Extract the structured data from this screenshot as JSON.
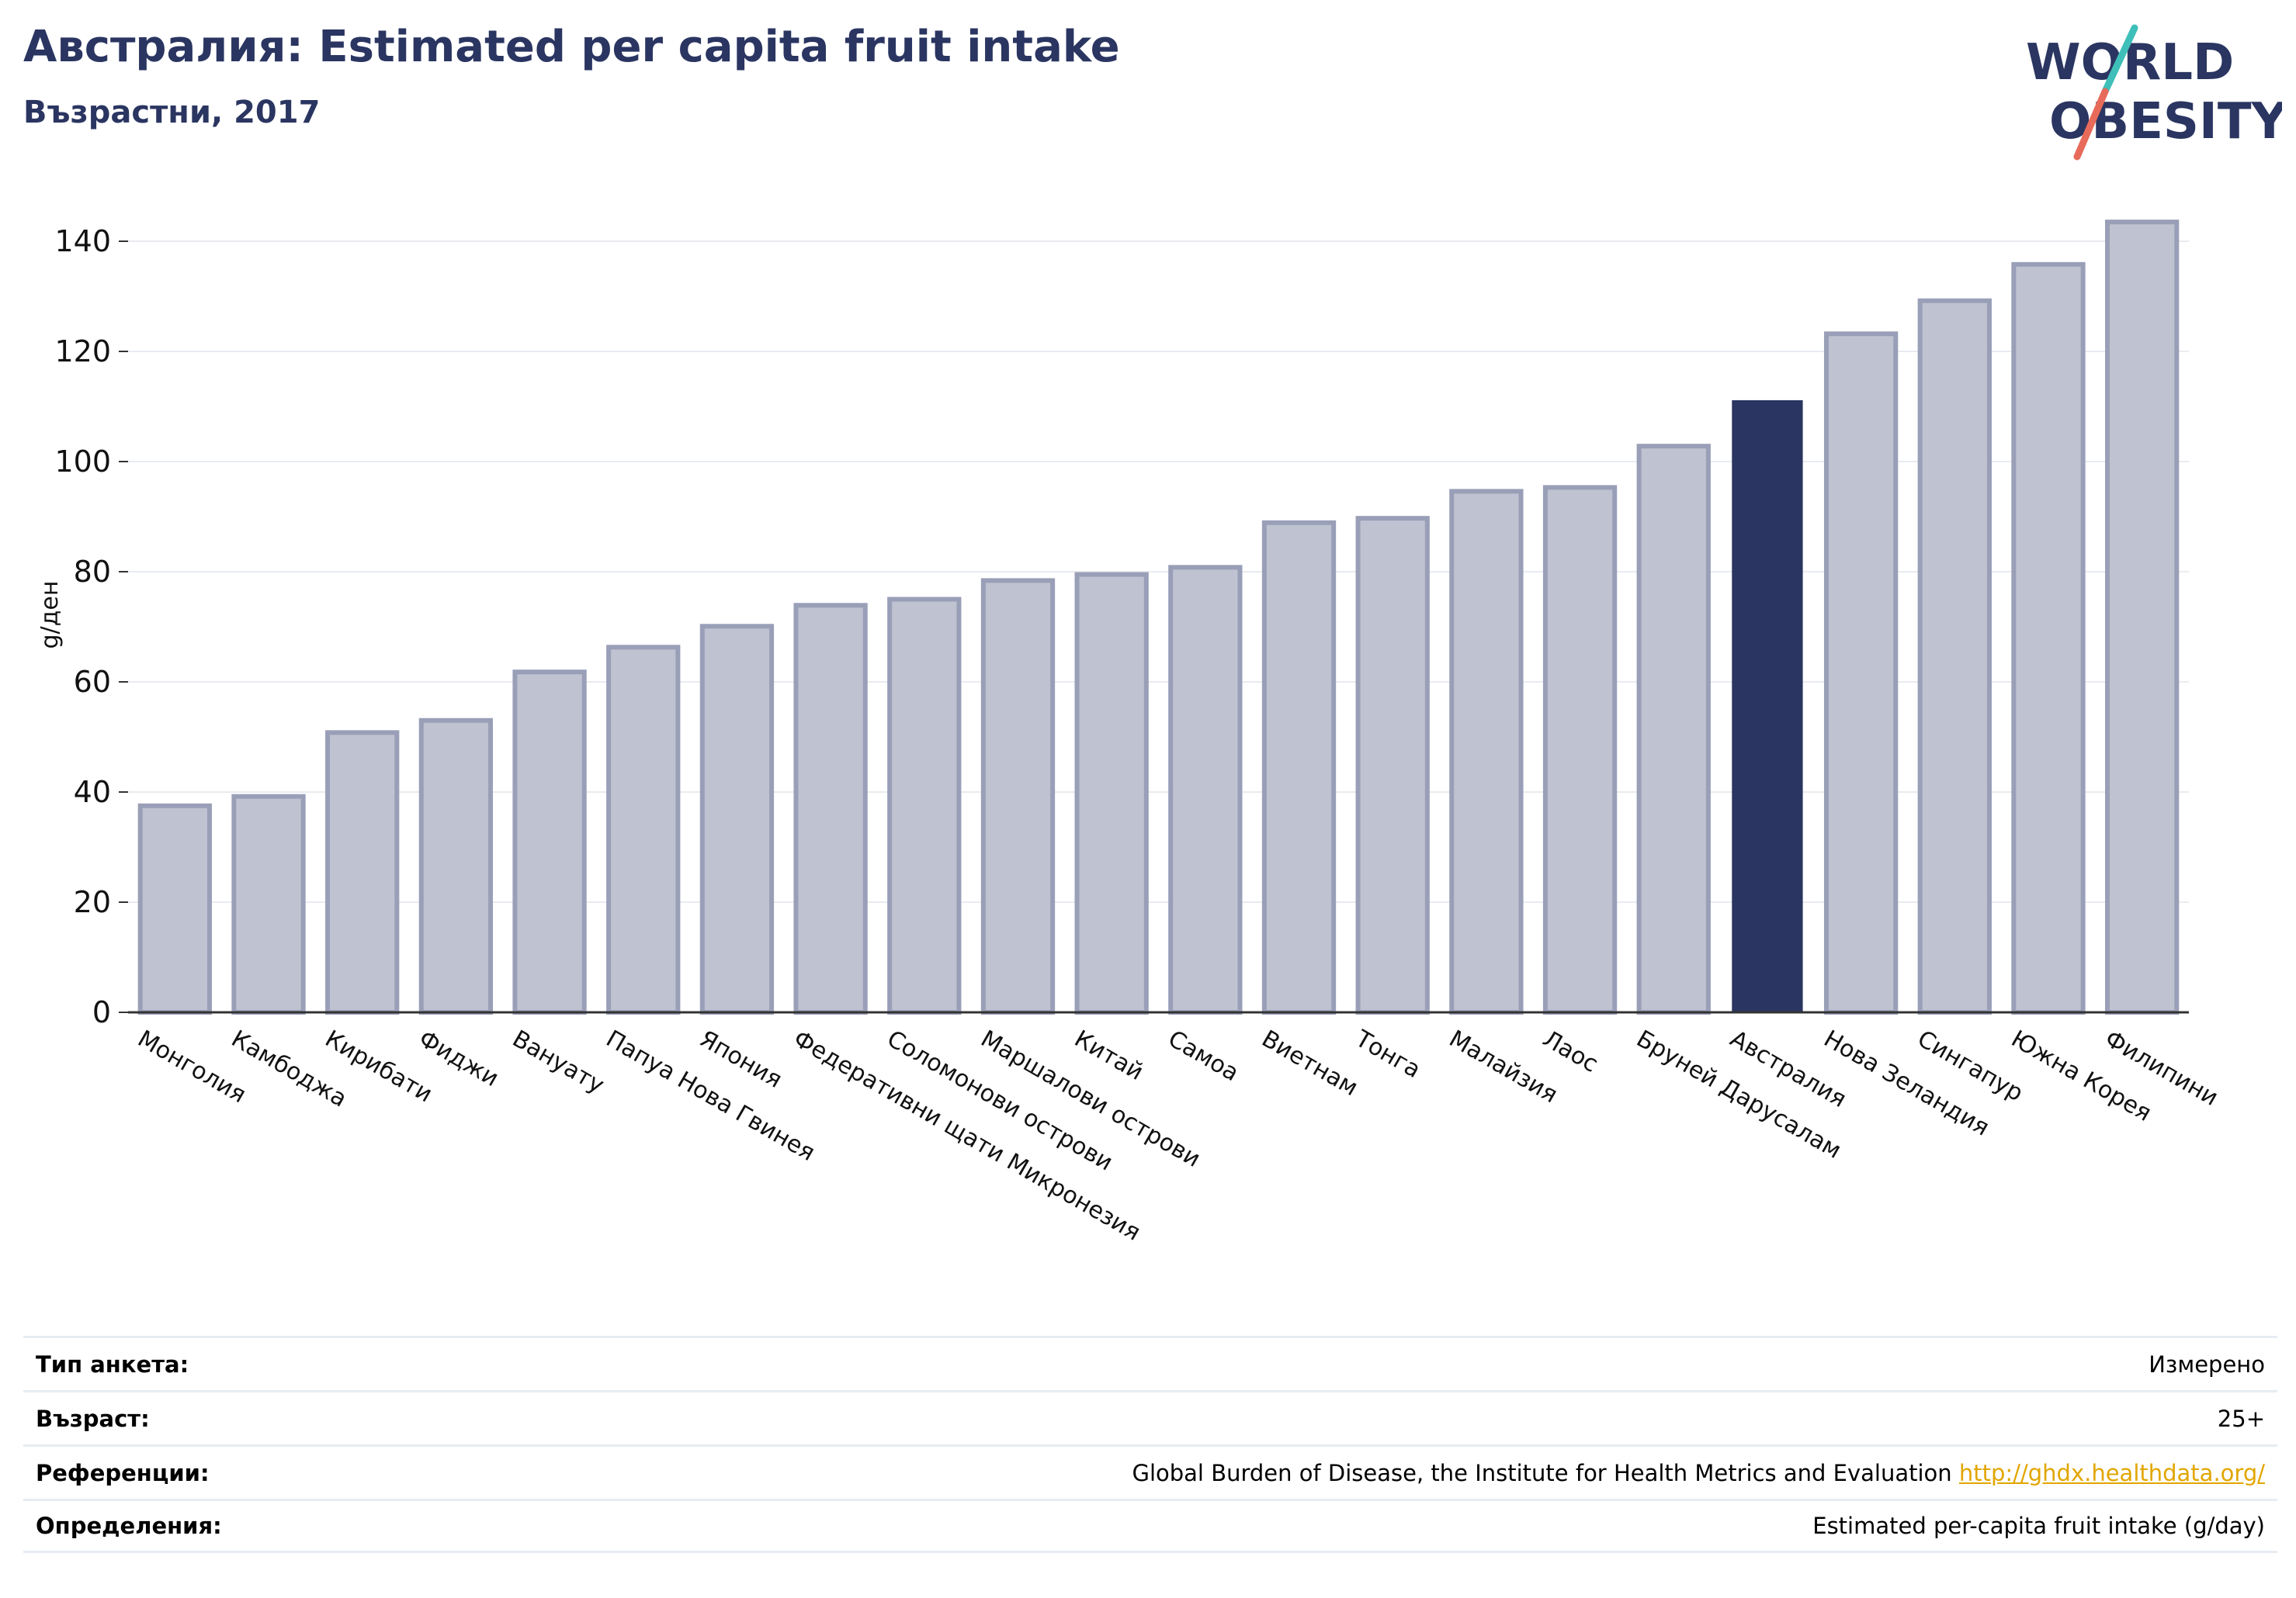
{
  "header": {
    "title": "Австралия: Estimated per capita fruit intake",
    "subtitle": "Възрастни, 2017"
  },
  "logo": {
    "line1": "WORLD",
    "line2": "OBESITY",
    "text_color": "#2a3561",
    "slash_top_color": "#3fbfb9",
    "slash_bottom_color": "#e76a5a"
  },
  "chart_data": {
    "type": "bar",
    "ylabel": "g/ден",
    "ylim": [
      0,
      150
    ],
    "yticks": [
      0,
      20,
      40,
      60,
      80,
      100,
      120,
      140
    ],
    "grid": true,
    "highlight": "Австралия",
    "colors": {
      "bar": "#bfc2d0",
      "bar_edge": "#9a9fb8",
      "highlight": "#2a3561",
      "grid": "#e8ebf0",
      "axis": "#333333"
    },
    "categories": [
      "Монголия",
      "Камбоджа",
      "Кирибати",
      "Фиджи",
      "Вануату",
      "Папуа Нова Гвинея",
      "Япония",
      "Федеративни щати Микронезия",
      "Соломонови острови",
      "Маршалови острови",
      "Китай",
      "Самоа",
      "Виетнам",
      "Тонга",
      "Малайзия",
      "Лаос",
      "Бруней Дарусалам",
      "Австралия",
      "Нова Зеландия",
      "Сингапур",
      "Южна Корея",
      "Филипини"
    ],
    "values": [
      37.5,
      39.2,
      50.8,
      53,
      61.8,
      66.3,
      70.1,
      73.9,
      75,
      78.4,
      79.5,
      80.8,
      88.9,
      89.7,
      94.6,
      95.3,
      102.8,
      111,
      123.2,
      129.2,
      135.8,
      143.5
    ]
  },
  "info": {
    "rows": [
      {
        "label": "Тип анкета:",
        "value": "Измерено"
      },
      {
        "label": "Възраст:",
        "value": "25+"
      },
      {
        "label": "Референции:",
        "value": "Global Burden of Disease, the Institute for Health Metrics and Evaluation",
        "link": "http://ghdx.healthdata.org/"
      },
      {
        "label": "Определения:",
        "value": "Estimated per-capita fruit intake (g/day)"
      }
    ]
  }
}
